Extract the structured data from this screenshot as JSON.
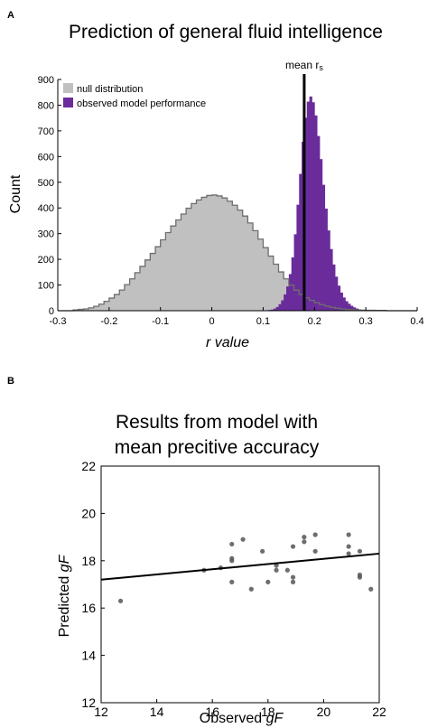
{
  "panel_a": {
    "label": "A",
    "chart_data": {
      "type": "histogram",
      "title": "Prediction of general fluid intelligence",
      "xlabel": "r value",
      "ylabel": "Count",
      "xlim": [
        -0.3,
        0.4
      ],
      "ylim": [
        0,
        900
      ],
      "xticks": [
        "-0.3",
        "-0.2",
        "-0.1",
        "0",
        "0.1",
        "0.2",
        "0.3",
        "0.4"
      ],
      "yticks": [
        "0",
        "100",
        "200",
        "300",
        "400",
        "500",
        "600",
        "700",
        "800",
        "900"
      ],
      "legend_position": "top-left",
      "series": [
        {
          "name": "null distribution",
          "color": "#c0c0c0",
          "edge": "#6e6e6e",
          "points": [
            [
              -0.27,
              2
            ],
            [
              -0.24,
              8
            ],
            [
              -0.22,
              20
            ],
            [
              -0.2,
              42
            ],
            [
              -0.18,
              70
            ],
            [
              -0.16,
              112
            ],
            [
              -0.14,
              160
            ],
            [
              -0.12,
              210
            ],
            [
              -0.1,
              262
            ],
            [
              -0.08,
              318
            ],
            [
              -0.06,
              365
            ],
            [
              -0.04,
              410
            ],
            [
              -0.02,
              438
            ],
            [
              0,
              452
            ],
            [
              0.02,
              445
            ],
            [
              0.04,
              420
            ],
            [
              0.06,
              382
            ],
            [
              0.08,
              328
            ],
            [
              0.1,
              262
            ],
            [
              0.12,
              196
            ],
            [
              0.14,
              136
            ],
            [
              0.16,
              88
            ],
            [
              0.18,
              55
            ],
            [
              0.2,
              35
            ],
            [
              0.22,
              20
            ],
            [
              0.24,
              11
            ],
            [
              0.26,
              5
            ],
            [
              0.28,
              3
            ],
            [
              0.3,
              2
            ],
            [
              0.34,
              1
            ]
          ]
        },
        {
          "name": "observed model performance",
          "color": "#6a2c9a",
          "points": [
            [
              0.1,
              0
            ],
            [
              0.12,
              5
            ],
            [
              0.13,
              18
            ],
            [
              0.14,
              48
            ],
            [
              0.15,
              110
            ],
            [
              0.16,
              240
            ],
            [
              0.17,
              470
            ],
            [
              0.18,
              720
            ],
            [
              0.19,
              845
            ],
            [
              0.2,
              800
            ],
            [
              0.21,
              640
            ],
            [
              0.22,
              440
            ],
            [
              0.23,
              270
            ],
            [
              0.24,
              150
            ],
            [
              0.25,
              80
            ],
            [
              0.26,
              42
            ],
            [
              0.27,
              22
            ],
            [
              0.28,
              10
            ],
            [
              0.29,
              4
            ],
            [
              0.3,
              1
            ]
          ]
        }
      ],
      "annotation": {
        "label_main": "mean r",
        "label_sub": "s",
        "x": 0.18
      }
    }
  },
  "panel_b": {
    "label": "B",
    "chart_data": {
      "type": "scatter",
      "title_line1": "Results from model with",
      "title_line2": "mean precitive accuracy",
      "xlabel_prefix": "Observed ",
      "xlabel_italic": "gF",
      "ylabel_prefix": "Predicted ",
      "ylabel_italic": "gF",
      "xlim": [
        12,
        22
      ],
      "ylim": [
        12,
        22
      ],
      "xticks": [
        "12",
        "14",
        "16",
        "18",
        "20",
        "22"
      ],
      "yticks": [
        "12",
        "14",
        "16",
        "18",
        "20",
        "22"
      ],
      "point_color": "#555555",
      "points": [
        [
          12.7,
          16.3
        ],
        [
          15.7,
          17.6
        ],
        [
          16.3,
          17.7
        ],
        [
          16.7,
          18.7
        ],
        [
          16.7,
          18.1
        ],
        [
          16.7,
          18.0
        ],
        [
          16.7,
          17.1
        ],
        [
          17.1,
          18.9
        ],
        [
          17.4,
          16.8
        ],
        [
          17.8,
          18.4
        ],
        [
          18.0,
          17.1
        ],
        [
          18.3,
          17.8
        ],
        [
          18.3,
          17.6
        ],
        [
          18.7,
          17.6
        ],
        [
          18.9,
          17.3
        ],
        [
          18.9,
          17.1
        ],
        [
          18.9,
          18.6
        ],
        [
          19.3,
          18.8
        ],
        [
          19.3,
          19.0
        ],
        [
          19.7,
          19.1
        ],
        [
          19.7,
          18.4
        ],
        [
          20.9,
          19.1
        ],
        [
          20.9,
          18.6
        ],
        [
          20.9,
          18.3
        ],
        [
          21.3,
          18.4
        ],
        [
          21.3,
          17.4
        ],
        [
          21.3,
          17.3
        ],
        [
          21.7,
          16.8
        ]
      ],
      "fit_line": [
        [
          12,
          17.2
        ],
        [
          22,
          18.3
        ]
      ]
    }
  }
}
